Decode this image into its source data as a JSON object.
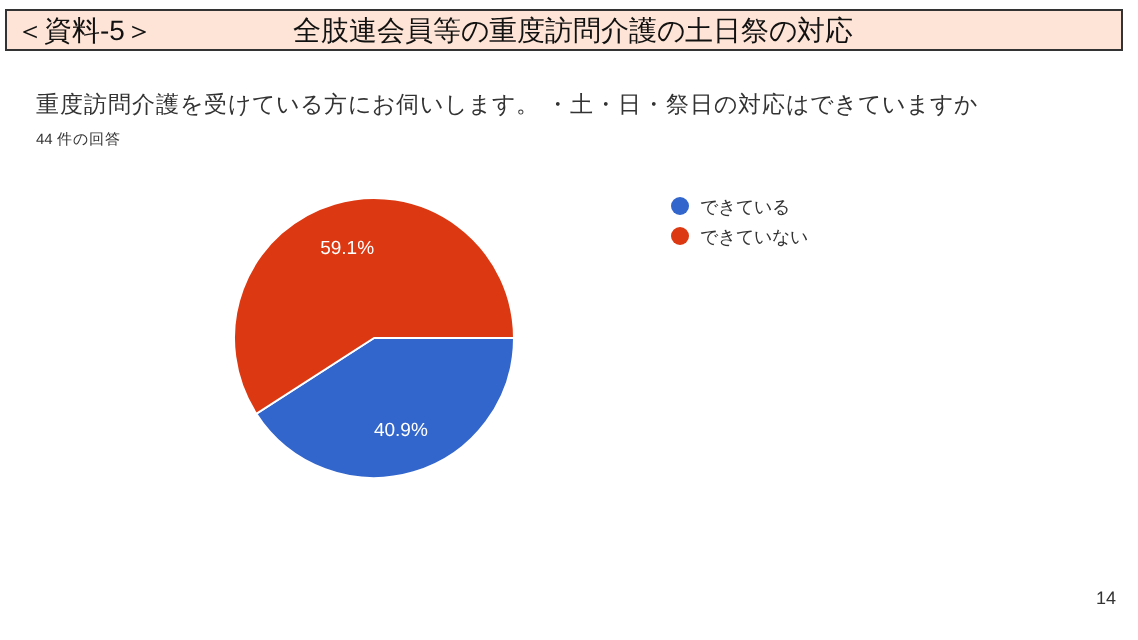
{
  "chart_data": {
    "type": "pie",
    "title": "＜資料-5＞　　　　　全肢連会員等の重度訪問介護の土日祭の対応",
    "subtitle": "重度訪問介護を受けている方にお伺いします。 ・土・日・祭日の対応はできていますか",
    "annotations": [
      "44 件の回答",
      "14"
    ],
    "categories": [
      "できている",
      "できていない"
    ],
    "values": [
      40.9,
      59.1
    ],
    "colors": [
      "#3266cc",
      "#dc3912"
    ],
    "value_labels": [
      "40.9%",
      "59.1%"
    ],
    "legend": "right"
  }
}
